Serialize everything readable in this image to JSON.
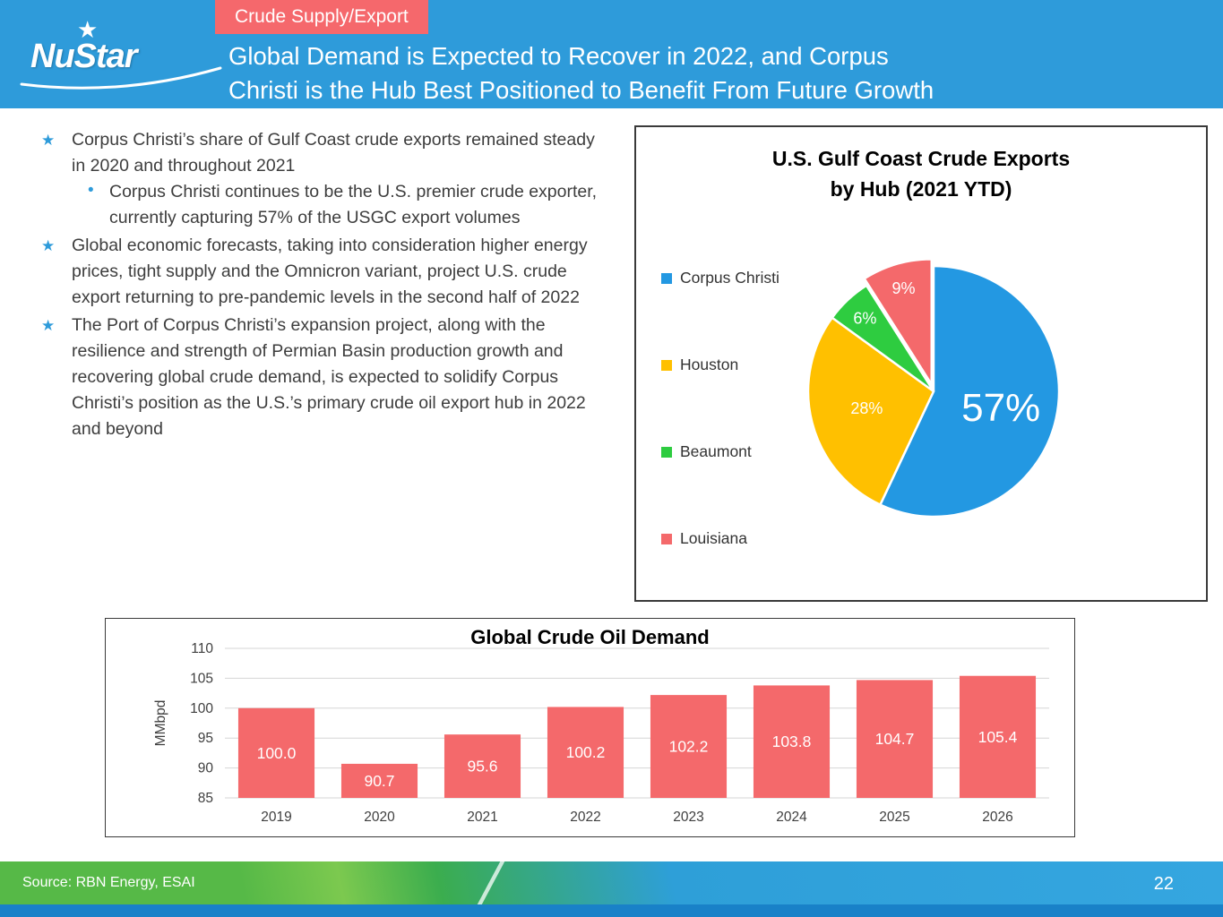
{
  "slide": {
    "logo_text": "NuStar",
    "tag": "Crude Supply/Export",
    "title_lines": [
      "Global Demand is Expected to Recover in 2022, and Corpus",
      "Christi is the Hub Best Positioned to Benefit From Future Growth"
    ],
    "source": "Source:  RBN Energy, ESAI",
    "page_number": "22"
  },
  "bullets": [
    {
      "text": "Corpus Christi’s share of Gulf Coast crude exports remained steady in 2020 and throughout 2021",
      "sub": [
        "Corpus Christi continues to be the U.S. premier crude exporter, currently capturing 57% of the USGC export volumes"
      ]
    },
    {
      "text": "Global economic forecasts, taking into consideration higher energy prices, tight supply and the Omnicron variant, project U.S. crude export returning to pre-pandemic levels in the second half of 2022",
      "sub": []
    },
    {
      "text": "The Port of Corpus Christi’s expansion project, along with the resilience and strength of Permian Basin production growth and recovering global crude demand, is expected to solidify Corpus Christi’s position as the U.S.’s primary crude oil export hub in 2022 and beyond",
      "sub": []
    }
  ],
  "chart_data": [
    {
      "type": "pie",
      "title": "U.S. Gulf Coast Crude Exports by Hub (2021 YTD)",
      "title_lines": [
        "U.S. Gulf Coast Crude Exports",
        "by Hub (2021 YTD)"
      ],
      "legend_position": "left",
      "start_angle_deg": 0,
      "direction": "clockwise",
      "slices": [
        {
          "label": "Corpus Christi",
          "value": 57,
          "data_label": "57%",
          "color": "#2398e2",
          "explode": false
        },
        {
          "label": "Houston",
          "value": 28,
          "data_label": "28%",
          "color": "#ffc000",
          "explode": false
        },
        {
          "label": "Beaumont",
          "value": 6,
          "data_label": "6%",
          "color": "#2ecc40",
          "explode": false
        },
        {
          "label": "Louisiana",
          "value": 9,
          "data_label": "9%",
          "color": "#f4696b",
          "explode": true
        }
      ]
    },
    {
      "type": "bar",
      "title": "Global Crude Oil Demand",
      "categories": [
        "2019",
        "2020",
        "2021",
        "2022",
        "2023",
        "2024",
        "2025",
        "2026"
      ],
      "values": [
        100.0,
        90.7,
        95.6,
        100.2,
        102.2,
        103.8,
        104.7,
        105.4
      ],
      "data_labels": [
        "100.0",
        "90.7",
        "95.6",
        "100.2",
        "102.2",
        "103.8",
        "104.7",
        "105.4"
      ],
      "xlabel": "",
      "ylabel": "MMbpd",
      "ylim": [
        85,
        110
      ],
      "yticks": [
        85,
        90,
        95,
        100,
        105,
        110
      ],
      "bar_color": "#f4696b",
      "grid": true,
      "legend_position": "none"
    }
  ],
  "colors": {
    "header_blue": "#2e9bda",
    "tag_red": "#f5686c",
    "bullet_star_blue": "#2e9bda",
    "bar_red": "#f4696b",
    "footer_green": "#56b947",
    "footer_blue": "#2e9fd8",
    "footer_strip_blue": "#1981c8",
    "gridline_gray": "#d6d6d6"
  }
}
